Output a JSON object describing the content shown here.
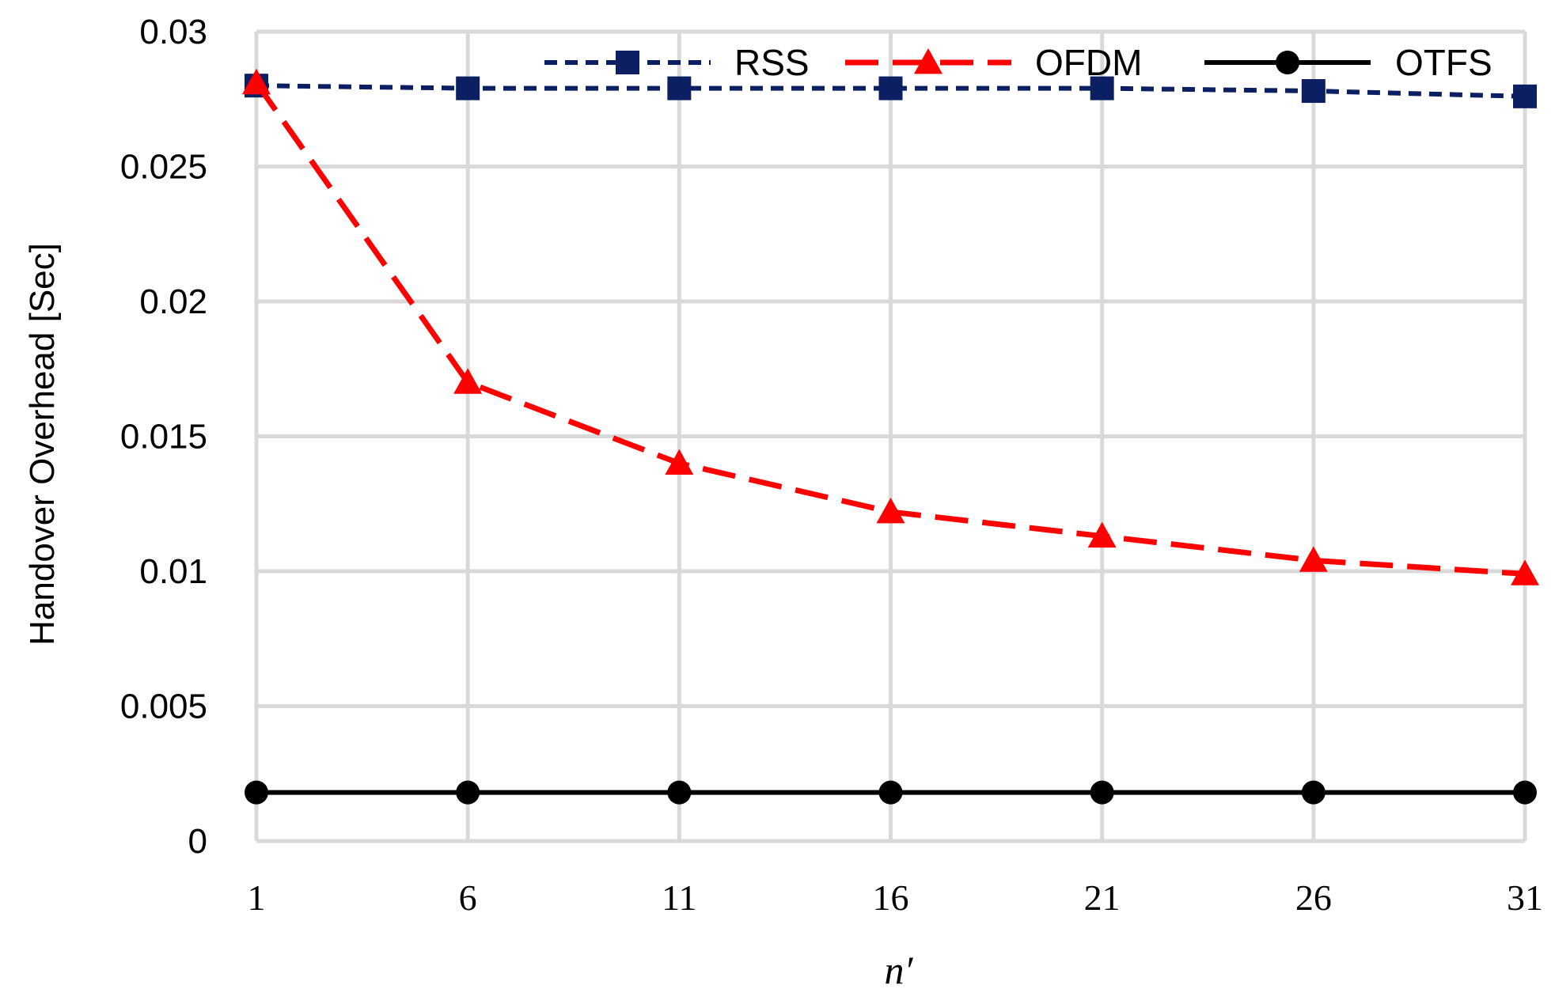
{
  "chart_data": {
    "type": "line",
    "xlabel": "n′",
    "ylabel": "Handover Overhead [Sec]",
    "x": [
      1,
      6,
      11,
      16,
      21,
      26,
      31
    ],
    "x_tick_labels": [
      "1",
      "6",
      "11",
      "16",
      "21",
      "26",
      "31"
    ],
    "ylim": [
      0,
      0.03
    ],
    "y_tick_labels": [
      "0",
      "0.005",
      "0.01",
      "0.015",
      "0.02",
      "0.025",
      "0.03"
    ],
    "y_ticks": [
      0,
      0.005,
      0.01,
      0.015,
      0.02,
      0.025,
      0.03
    ],
    "grid": true,
    "legend_position": "top",
    "series": [
      {
        "name": "RSS",
        "color": "#0d1f63",
        "dash": "short-dash",
        "marker": "square",
        "values": [
          0.028,
          0.0279,
          0.0279,
          0.0279,
          0.0279,
          0.0278,
          0.0276
        ]
      },
      {
        "name": "OFDM",
        "color": "#ff0000",
        "dash": "long-dash",
        "marker": "triangle",
        "values": [
          0.0281,
          0.017,
          0.014,
          0.0122,
          0.0113,
          0.0104,
          0.0099
        ]
      },
      {
        "name": "OTFS",
        "color": "#000000",
        "dash": "solid",
        "marker": "circle",
        "values": [
          0.0018,
          0.0018,
          0.0018,
          0.0018,
          0.0018,
          0.0018,
          0.0018
        ]
      }
    ]
  }
}
